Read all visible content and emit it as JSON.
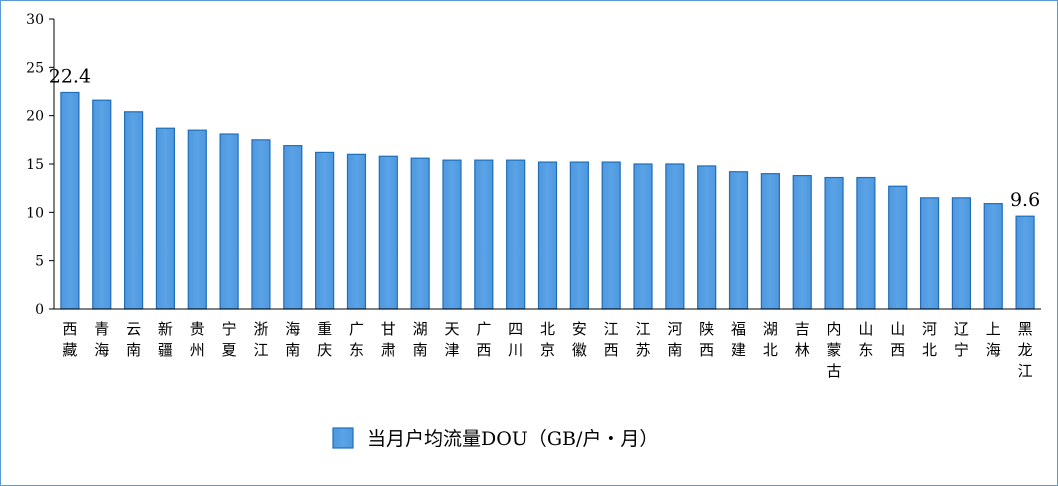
{
  "chart_data": {
    "type": "bar",
    "categories": [
      "西藏",
      "青海",
      "云南",
      "新疆",
      "贵州",
      "宁夏",
      "浙江",
      "海南",
      "重庆",
      "广东",
      "甘肃",
      "湖南",
      "天津",
      "广西",
      "四川",
      "北京",
      "安徽",
      "江西",
      "江苏",
      "河南",
      "陕西",
      "福建",
      "湖北",
      "吉林",
      "内蒙古",
      "山东",
      "山西",
      "河北",
      "辽宁",
      "上海",
      "黑龙江"
    ],
    "series": [
      {
        "name": "当月户均流量DOU（GB/户・月）",
        "values": [
          22.4,
          21.6,
          20.4,
          18.7,
          18.5,
          18.1,
          17.5,
          16.9,
          16.2,
          16.0,
          15.8,
          15.6,
          15.4,
          15.4,
          15.4,
          15.2,
          15.2,
          15.2,
          15.0,
          15.0,
          14.8,
          14.2,
          14.0,
          13.8,
          13.6,
          13.6,
          12.7,
          11.5,
          11.5,
          10.9,
          9.6
        ],
        "color": "#5ba3e6",
        "border_color": "#1f6fb8"
      }
    ],
    "ylim": [
      0,
      30
    ],
    "yticks": [
      "0",
      "5",
      "10",
      "15",
      "20",
      "25",
      "30"
    ],
    "data_labels": [
      {
        "index": 0,
        "text": "22.4"
      },
      {
        "index": 30,
        "text": "9.6"
      }
    ],
    "grid": false,
    "legend_position": "bottom-center",
    "title": "",
    "xlabel": "",
    "ylabel": ""
  }
}
